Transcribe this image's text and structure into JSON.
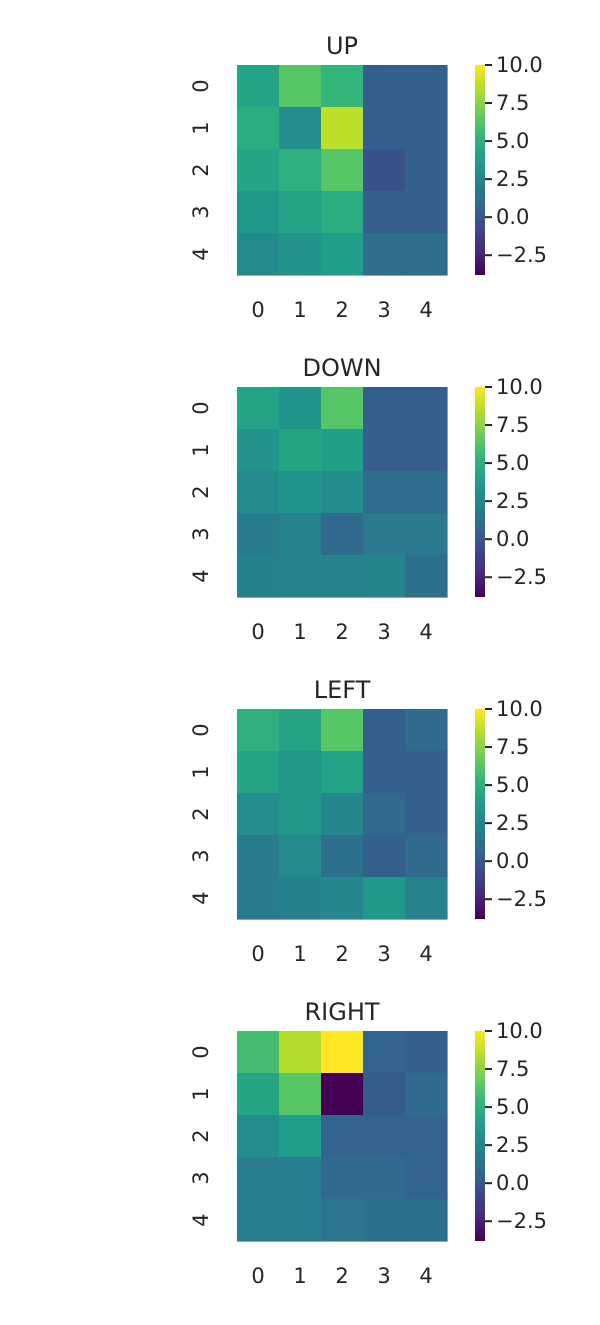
{
  "colormap": {
    "name": "viridis",
    "stops": [
      "#440154",
      "#482878",
      "#3e4989",
      "#31688e",
      "#26828e",
      "#1f9e89",
      "#35b779",
      "#6ece58",
      "#b5de2b",
      "#fde725"
    ]
  },
  "chart_data": [
    {
      "type": "heatmap",
      "title": "UP",
      "x_ticks": [
        "0",
        "1",
        "2",
        "3",
        "4"
      ],
      "y_ticks": [
        "0",
        "1",
        "2",
        "3",
        "4"
      ],
      "values": [
        [
          4.2,
          6.3,
          5.3,
          0.4,
          0.4
        ],
        [
          4.8,
          3.0,
          8.6,
          0.4,
          0.4
        ],
        [
          4.2,
          4.9,
          6.3,
          -0.3,
          0.4
        ],
        [
          3.6,
          4.2,
          4.8,
          0.4,
          0.4
        ],
        [
          2.8,
          3.3,
          3.9,
          1.2,
          1.2
        ]
      ],
      "vmin": -3.8,
      "vmax": 10.0,
      "colorbar_ticks": [
        "10.0",
        "7.5",
        "5.0",
        "2.5",
        "0.0",
        "−2.5"
      ],
      "colorbar_values": [
        10.0,
        7.5,
        5.0,
        2.5,
        0.0,
        -2.5
      ]
    },
    {
      "type": "heatmap",
      "title": "DOWN",
      "x_ticks": [
        "0",
        "1",
        "2",
        "3",
        "4"
      ],
      "y_ticks": [
        "0",
        "1",
        "2",
        "3",
        "4"
      ],
      "values": [
        [
          4.2,
          3.4,
          6.3,
          0.4,
          0.4
        ],
        [
          3.3,
          4.3,
          4.0,
          0.4,
          0.4
        ],
        [
          2.8,
          3.4,
          2.9,
          1.1,
          1.1
        ],
        [
          1.9,
          2.4,
          0.9,
          1.8,
          1.8
        ],
        [
          2.3,
          2.4,
          2.4,
          2.5,
          1.3
        ]
      ],
      "vmin": -3.8,
      "vmax": 10.0,
      "colorbar_ticks": [
        "10.0",
        "7.5",
        "5.0",
        "2.5",
        "0.0",
        "−2.5"
      ],
      "colorbar_values": [
        10.0,
        7.5,
        5.0,
        2.5,
        0.0,
        -2.5
      ]
    },
    {
      "type": "heatmap",
      "title": "LEFT",
      "x_ticks": [
        "0",
        "1",
        "2",
        "3",
        "4"
      ],
      "y_ticks": [
        "0",
        "1",
        "2",
        "3",
        "4"
      ],
      "values": [
        [
          5.0,
          4.2,
          6.3,
          0.4,
          1.0
        ],
        [
          4.2,
          3.5,
          4.2,
          0.4,
          0.4
        ],
        [
          3.0,
          3.5,
          2.6,
          1.0,
          0.4
        ],
        [
          2.0,
          2.8,
          1.3,
          0.4,
          1.0
        ],
        [
          2.0,
          2.2,
          2.6,
          3.6,
          2.4
        ]
      ],
      "vmin": -3.8,
      "vmax": 10.0,
      "colorbar_ticks": [
        "10.0",
        "7.5",
        "5.0",
        "2.5",
        "0.0",
        "−2.5"
      ],
      "colorbar_values": [
        10.0,
        7.5,
        5.0,
        2.5,
        0.0,
        -2.5
      ]
    },
    {
      "type": "heatmap",
      "title": "RIGHT",
      "x_ticks": [
        "0",
        "1",
        "2",
        "3",
        "4"
      ],
      "y_ticks": [
        "0",
        "1",
        "2",
        "3",
        "4"
      ],
      "values": [
        [
          5.8,
          8.4,
          10.0,
          0.6,
          0.4
        ],
        [
          4.3,
          6.3,
          -3.8,
          0.2,
          0.9
        ],
        [
          3.0,
          3.9,
          0.6,
          0.6,
          0.6
        ],
        [
          2.1,
          2.1,
          0.9,
          0.9,
          0.6
        ],
        [
          2.1,
          2.1,
          1.6,
          1.3,
          1.3
        ]
      ],
      "vmin": -3.8,
      "vmax": 10.0,
      "colorbar_ticks": [
        "10.0",
        "7.5",
        "5.0",
        "2.5",
        "0.0",
        "−2.5"
      ],
      "colorbar_values": [
        10.0,
        7.5,
        5.0,
        2.5,
        0.0,
        -2.5
      ]
    }
  ]
}
